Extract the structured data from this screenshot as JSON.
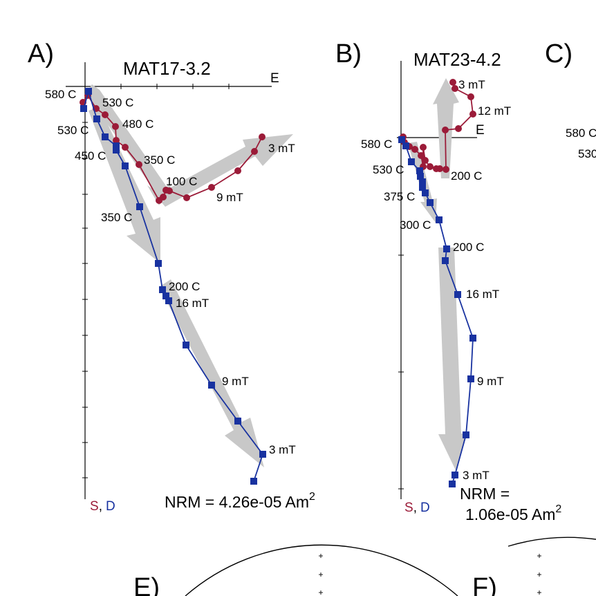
{
  "panels": {
    "A": {
      "label": "A)",
      "title": "MAT17-3.2",
      "axis_label_e": "E",
      "legend_s": "S",
      "legend_sep": ",",
      "legend_d": "D",
      "nrm_text": "NRM = 4.26e-05 Am",
      "nrm_exp": "2",
      "annotations": {
        "h580": "580 C",
        "h530": "530 C",
        "h480": "480 C",
        "h350": "350 C",
        "h100": "100 C",
        "h9mT": "9 mT",
        "h3mT": "3 mT",
        "v530": "530 C",
        "v450": "450 C",
        "v350": "350 C",
        "v200": "200 C",
        "v16mT": "16 mT",
        "v9mT": "9 mT",
        "v3mT": "3 mT"
      }
    },
    "B": {
      "label": "B)",
      "title": "MAT23-4.2",
      "axis_label_e": "E",
      "legend_s": "S",
      "legend_sep": ",",
      "legend_d": "D",
      "nrm_line1": "NRM =",
      "nrm_line2": "1.06e-05 Am",
      "nrm_exp": "2",
      "annotations": {
        "h3mT": "3 mT",
        "h12mT": "12 mT",
        "h200": "200 C",
        "v580": "580 C",
        "v530": "530 C",
        "v375": "375 C",
        "v300": "300 C",
        "v200": "200 C",
        "v16mT": "16 mT",
        "v9mT": "9 mT",
        "v3mT": "3 mT"
      }
    },
    "C": {
      "label": "C)",
      "partial1": "580 C",
      "partial2": "530"
    },
    "E": {
      "label": "E)"
    },
    "F": {
      "label": "F)"
    }
  },
  "colors": {
    "horizontal_projection": "#9b1b38",
    "vertical_projection": "#1832a0",
    "fit_arrow": "#c8c8c8"
  }
}
